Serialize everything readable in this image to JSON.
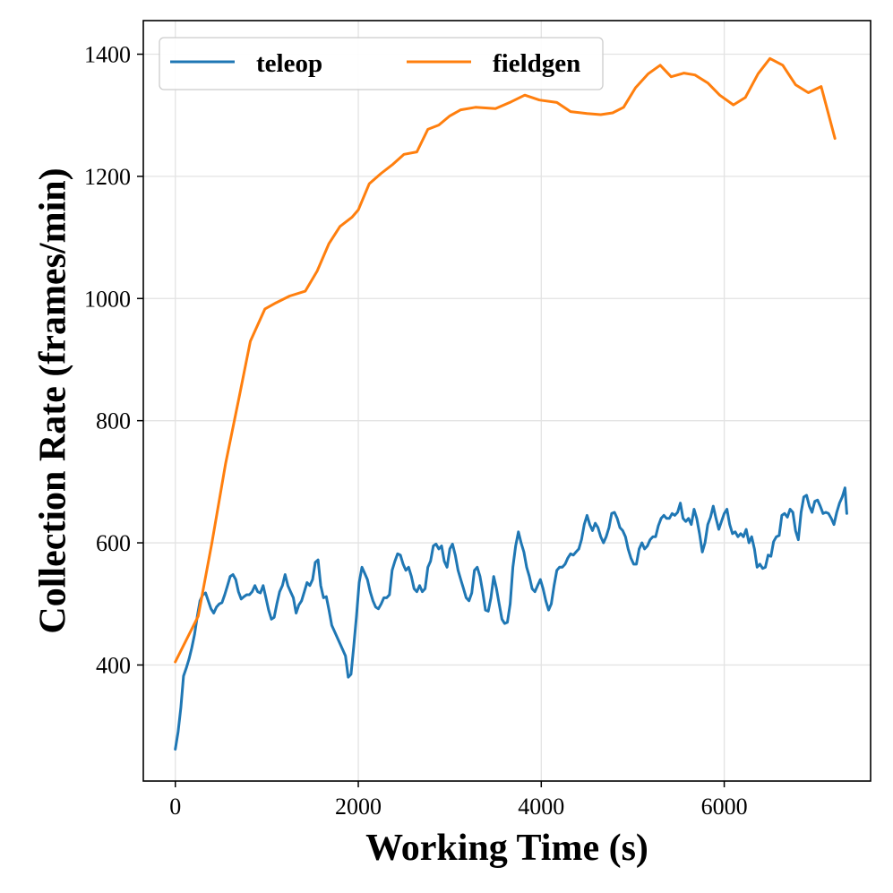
{
  "chart_data": {
    "type": "line",
    "title": "",
    "xlabel": "Working Time (s)",
    "ylabel": "Collection Rate (frames/min)",
    "xlim": [
      -350,
      7600
    ],
    "ylim": [
      210,
      1455
    ],
    "xticks": [
      0,
      2000,
      4000,
      6000
    ],
    "yticks": [
      400,
      600,
      800,
      1000,
      1200,
      1400
    ],
    "grid": true,
    "legend": {
      "placement": "top-left",
      "ncol": 2
    },
    "series": [
      {
        "name": "teleop",
        "color": "#1f77b4",
        "points": [
          [
            0,
            262
          ],
          [
            30,
            290
          ],
          [
            60,
            330
          ],
          [
            90,
            382
          ],
          [
            120,
            395
          ],
          [
            150,
            410
          ],
          [
            180,
            428
          ],
          [
            210,
            450
          ],
          [
            240,
            480
          ],
          [
            270,
            505
          ],
          [
            300,
            515
          ],
          [
            330,
            518
          ],
          [
            360,
            505
          ],
          [
            390,
            492
          ],
          [
            420,
            485
          ],
          [
            450,
            495
          ],
          [
            480,
            500
          ],
          [
            510,
            502
          ],
          [
            540,
            515
          ],
          [
            570,
            530
          ],
          [
            600,
            545
          ],
          [
            630,
            548
          ],
          [
            660,
            540
          ],
          [
            690,
            520
          ],
          [
            720,
            508
          ],
          [
            750,
            512
          ],
          [
            780,
            515
          ],
          [
            810,
            515
          ],
          [
            840,
            520
          ],
          [
            870,
            530
          ],
          [
            900,
            520
          ],
          [
            930,
            518
          ],
          [
            960,
            530
          ],
          [
            990,
            510
          ],
          [
            1020,
            490
          ],
          [
            1050,
            475
          ],
          [
            1080,
            478
          ],
          [
            1110,
            500
          ],
          [
            1140,
            520
          ],
          [
            1170,
            530
          ],
          [
            1200,
            548
          ],
          [
            1230,
            530
          ],
          [
            1260,
            520
          ],
          [
            1290,
            510
          ],
          [
            1320,
            485
          ],
          [
            1350,
            498
          ],
          [
            1380,
            505
          ],
          [
            1410,
            520
          ],
          [
            1440,
            535
          ],
          [
            1470,
            530
          ],
          [
            1500,
            540
          ],
          [
            1530,
            568
          ],
          [
            1560,
            572
          ],
          [
            1590,
            530
          ],
          [
            1620,
            510
          ],
          [
            1650,
            512
          ],
          [
            1680,
            490
          ],
          [
            1710,
            465
          ],
          [
            1860,
            415
          ],
          [
            1890,
            380
          ],
          [
            1920,
            385
          ],
          [
            1950,
            430
          ],
          [
            1980,
            480
          ],
          [
            2010,
            535
          ],
          [
            2040,
            560
          ],
          [
            2070,
            550
          ],
          [
            2100,
            540
          ],
          [
            2130,
            520
          ],
          [
            2160,
            505
          ],
          [
            2190,
            495
          ],
          [
            2220,
            492
          ],
          [
            2250,
            500
          ],
          [
            2280,
            510
          ],
          [
            2310,
            510
          ],
          [
            2340,
            515
          ],
          [
            2370,
            555
          ],
          [
            2400,
            570
          ],
          [
            2430,
            582
          ],
          [
            2460,
            580
          ],
          [
            2490,
            565
          ],
          [
            2520,
            555
          ],
          [
            2550,
            560
          ],
          [
            2580,
            545
          ],
          [
            2610,
            525
          ],
          [
            2640,
            520
          ],
          [
            2670,
            530
          ],
          [
            2700,
            520
          ],
          [
            2730,
            525
          ],
          [
            2760,
            560
          ],
          [
            2790,
            570
          ],
          [
            2820,
            595
          ],
          [
            2850,
            598
          ],
          [
            2880,
            590
          ],
          [
            2910,
            595
          ],
          [
            2940,
            570
          ],
          [
            2970,
            560
          ],
          [
            3000,
            590
          ],
          [
            3030,
            598
          ],
          [
            3060,
            580
          ],
          [
            3090,
            555
          ],
          [
            3120,
            540
          ],
          [
            3150,
            525
          ],
          [
            3180,
            510
          ],
          [
            3210,
            505
          ],
          [
            3240,
            518
          ],
          [
            3270,
            555
          ],
          [
            3300,
            560
          ],
          [
            3330,
            545
          ],
          [
            3360,
            520
          ],
          [
            3390,
            490
          ],
          [
            3420,
            488
          ],
          [
            3450,
            510
          ],
          [
            3480,
            545
          ],
          [
            3510,
            525
          ],
          [
            3540,
            500
          ],
          [
            3570,
            475
          ],
          [
            3600,
            468
          ],
          [
            3630,
            470
          ],
          [
            3660,
            500
          ],
          [
            3690,
            560
          ],
          [
            3720,
            595
          ],
          [
            3750,
            618
          ],
          [
            3780,
            600
          ],
          [
            3810,
            585
          ],
          [
            3840,
            560
          ],
          [
            3870,
            545
          ],
          [
            3900,
            525
          ],
          [
            3930,
            520
          ],
          [
            3960,
            530
          ],
          [
            3990,
            540
          ],
          [
            4020,
            525
          ],
          [
            4050,
            505
          ],
          [
            4080,
            490
          ],
          [
            4110,
            500
          ],
          [
            4140,
            530
          ],
          [
            4170,
            555
          ],
          [
            4200,
            560
          ],
          [
            4230,
            560
          ],
          [
            4260,
            565
          ],
          [
            4290,
            575
          ],
          [
            4320,
            582
          ],
          [
            4350,
            580
          ],
          [
            4380,
            585
          ],
          [
            4410,
            590
          ],
          [
            4440,
            605
          ],
          [
            4470,
            630
          ],
          [
            4500,
            645
          ],
          [
            4530,
            630
          ],
          [
            4560,
            620
          ],
          [
            4590,
            632
          ],
          [
            4620,
            625
          ],
          [
            4650,
            610
          ],
          [
            4680,
            600
          ],
          [
            4710,
            610
          ],
          [
            4740,
            625
          ],
          [
            4770,
            648
          ],
          [
            4800,
            650
          ],
          [
            4830,
            640
          ],
          [
            4860,
            625
          ],
          [
            4890,
            620
          ],
          [
            4920,
            610
          ],
          [
            4950,
            590
          ],
          [
            4980,
            575
          ],
          [
            5010,
            565
          ],
          [
            5040,
            565
          ],
          [
            5070,
            590
          ],
          [
            5100,
            600
          ],
          [
            5130,
            590
          ],
          [
            5160,
            595
          ],
          [
            5190,
            605
          ],
          [
            5220,
            610
          ],
          [
            5250,
            610
          ],
          [
            5280,
            628
          ],
          [
            5310,
            640
          ],
          [
            5340,
            645
          ],
          [
            5370,
            640
          ],
          [
            5400,
            640
          ],
          [
            5430,
            648
          ],
          [
            5460,
            645
          ],
          [
            5490,
            650
          ],
          [
            5520,
            665
          ],
          [
            5550,
            640
          ],
          [
            5580,
            635
          ],
          [
            5610,
            640
          ],
          [
            5640,
            630
          ],
          [
            5670,
            655
          ],
          [
            5700,
            640
          ],
          [
            5730,
            615
          ],
          [
            5760,
            585
          ],
          [
            5790,
            600
          ],
          [
            5820,
            630
          ],
          [
            5850,
            642
          ],
          [
            5880,
            660
          ],
          [
            5910,
            640
          ],
          [
            5940,
            622
          ],
          [
            5970,
            635
          ],
          [
            6000,
            648
          ],
          [
            6030,
            655
          ],
          [
            6060,
            630
          ],
          [
            6090,
            615
          ],
          [
            6120,
            618
          ],
          [
            6150,
            610
          ],
          [
            6180,
            615
          ],
          [
            6210,
            610
          ],
          [
            6240,
            622
          ],
          [
            6270,
            600
          ],
          [
            6300,
            610
          ],
          [
            6330,
            590
          ],
          [
            6360,
            560
          ],
          [
            6390,
            565
          ],
          [
            6420,
            558
          ],
          [
            6450,
            560
          ],
          [
            6480,
            580
          ],
          [
            6510,
            578
          ],
          [
            6540,
            602
          ],
          [
            6570,
            610
          ],
          [
            6600,
            612
          ],
          [
            6630,
            645
          ],
          [
            6660,
            648
          ],
          [
            6690,
            642
          ],
          [
            6720,
            655
          ],
          [
            6750,
            650
          ],
          [
            6780,
            620
          ],
          [
            6810,
            605
          ],
          [
            6840,
            650
          ],
          [
            6870,
            675
          ],
          [
            6900,
            678
          ],
          [
            6930,
            660
          ],
          [
            6960,
            650
          ],
          [
            6990,
            668
          ],
          [
            7020,
            670
          ],
          [
            7050,
            660
          ],
          [
            7080,
            648
          ],
          [
            7110,
            650
          ],
          [
            7140,
            648
          ],
          [
            7170,
            640
          ],
          [
            7200,
            630
          ],
          [
            7230,
            650
          ],
          [
            7260,
            665
          ],
          [
            7290,
            675
          ],
          [
            7320,
            690
          ],
          [
            7340,
            648
          ]
        ]
      },
      {
        "name": "fieldgen",
        "color": "#ff7f0e",
        "points": [
          [
            0,
            405
          ],
          [
            250,
            480
          ],
          [
            400,
            600
          ],
          [
            550,
            730
          ],
          [
            700,
            840
          ],
          [
            820,
            930
          ],
          [
            980,
            983
          ],
          [
            1100,
            993
          ],
          [
            1250,
            1004
          ],
          [
            1420,
            1012
          ],
          [
            1550,
            1045
          ],
          [
            1680,
            1090
          ],
          [
            1800,
            1118
          ],
          [
            1930,
            1133
          ],
          [
            2000,
            1145
          ],
          [
            2120,
            1188
          ],
          [
            2250,
            1205
          ],
          [
            2380,
            1220
          ],
          [
            2500,
            1236
          ],
          [
            2640,
            1240
          ],
          [
            2760,
            1277
          ],
          [
            2880,
            1284
          ],
          [
            3000,
            1299
          ],
          [
            3120,
            1309
          ],
          [
            3280,
            1313
          ],
          [
            3500,
            1311
          ],
          [
            3670,
            1322
          ],
          [
            3820,
            1333
          ],
          [
            3980,
            1325
          ],
          [
            4170,
            1321
          ],
          [
            4320,
            1306
          ],
          [
            4500,
            1303
          ],
          [
            4650,
            1301
          ],
          [
            4780,
            1304
          ],
          [
            4900,
            1313
          ],
          [
            5030,
            1345
          ],
          [
            5170,
            1368
          ],
          [
            5300,
            1382
          ],
          [
            5420,
            1363
          ],
          [
            5560,
            1369
          ],
          [
            5680,
            1366
          ],
          [
            5820,
            1353
          ],
          [
            5950,
            1333
          ],
          [
            6100,
            1317
          ],
          [
            6230,
            1329
          ],
          [
            6370,
            1368
          ],
          [
            6500,
            1393
          ],
          [
            6640,
            1382
          ],
          [
            6780,
            1350
          ],
          [
            6920,
            1337
          ],
          [
            7060,
            1347
          ],
          [
            7210,
            1262
          ]
        ]
      }
    ]
  }
}
